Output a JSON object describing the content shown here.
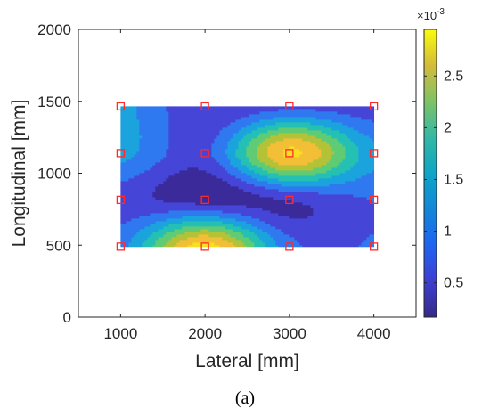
{
  "chart_data": {
    "type": "heatmap",
    "style": "filled-contour",
    "xlabel": "Lateral [mm]",
    "ylabel": "Longitudinal [mm]",
    "xlim": [
      500,
      4500
    ],
    "ylim": [
      0,
      2000
    ],
    "xticks": [
      1000,
      2000,
      3000,
      4000
    ],
    "yticks": [
      0,
      500,
      1000,
      1500,
      2000
    ],
    "grid": false,
    "colormap": "parula",
    "colorbar": {
      "range": [
        0.00017,
        0.00295
      ],
      "ticks": [
        0.0005,
        0.001,
        0.0015,
        0.002,
        0.0025
      ],
      "tick_labels": [
        "0.5",
        "1",
        "1.5",
        "2",
        "2.5"
      ],
      "exponent_label": "×10",
      "exponent_power": "-3",
      "location": "right"
    },
    "grid_x": [
      1000,
      2000,
      3000,
      4000
    ],
    "grid_y": [
      490,
      815,
      1140,
      1465
    ],
    "z": [
      [
        0.001,
        0.0028,
        0.0009,
        0.0008
      ],
      [
        0.0006,
        0.00035,
        0.0005,
        0.0008
      ],
      [
        0.0012,
        0.0007,
        0.0027,
        0.0012
      ],
      [
        0.0012,
        0.0005,
        0.0007,
        0.0006
      ]
    ],
    "contour_levels": [
      0.00017,
      0.00048,
      0.00079,
      0.0011,
      0.00141,
      0.00172,
      0.00203,
      0.00234,
      0.00265
    ],
    "level_colors": [
      "#3b2a9a",
      "#4545d8",
      "#2f78f0",
      "#1aa3dc",
      "#25c0b4",
      "#5fcb74",
      "#b4c238",
      "#f2bf36",
      "#f8e020"
    ],
    "markers": {
      "x": [
        1000,
        2000,
        3000,
        4000,
        1000,
        2000,
        3000,
        4000,
        1000,
        2000,
        3000,
        4000,
        1000,
        2000,
        3000,
        4000
      ],
      "y": [
        490,
        490,
        490,
        490,
        815,
        815,
        815,
        815,
        1140,
        1140,
        1140,
        1140,
        1465,
        1465,
        1465,
        1465
      ],
      "shape": "square",
      "color": "#ff2a2a"
    }
  },
  "caption": "(a)"
}
